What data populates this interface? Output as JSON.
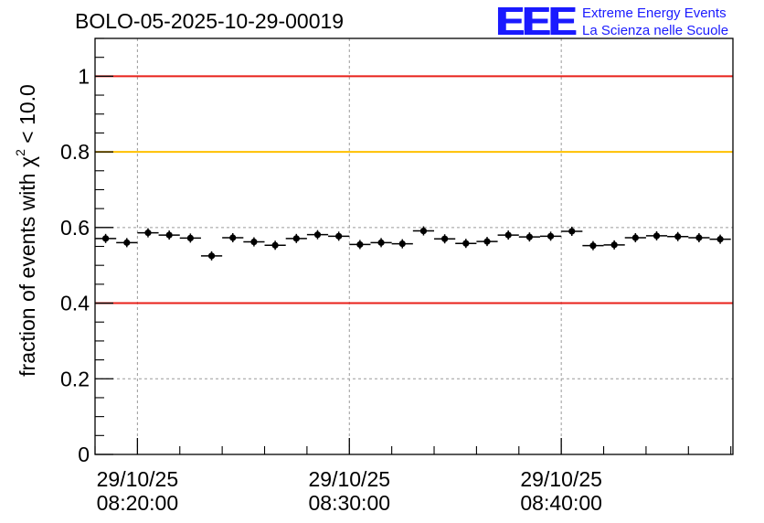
{
  "header": {
    "title": "BOLO-05-2025-10-29-00019",
    "logo_mark": "EEE",
    "logo_line1": "Extreme Energy Events",
    "logo_line2": "La Scienza nelle Scuole"
  },
  "colors": {
    "limit_red": "#e8201a",
    "limit_yellow": "#ffc000",
    "grid": "#9a9a9a",
    "points": "#000000",
    "logo": "#1a1aff"
  },
  "chart_data": {
    "type": "scatter",
    "title": "BOLO-05-2025-10-29-00019",
    "xlabel": "",
    "ylabel_prefix": "fraction of events with ",
    "ylabel_symbol": "χ",
    "ylabel_sup": "2",
    "ylabel_suffix": " < 10.0",
    "ylim": [
      0,
      1.1
    ],
    "yticks": [
      0,
      0.2,
      0.4,
      0.6,
      0.8,
      1
    ],
    "ytick_labels": [
      "0",
      "0.2",
      "0.4",
      "0.6",
      "0.8",
      "1"
    ],
    "x_range_minutes": [
      8.0,
      38.1
    ],
    "bin_width_minutes": 1.0,
    "xticks": [
      {
        "minute": 10,
        "date": "29/10/25",
        "time": "08:20:00"
      },
      {
        "minute": 20,
        "date": "29/10/25",
        "time": "08:30:00"
      },
      {
        "minute": 30,
        "date": "29/10/25",
        "time": "08:40:00"
      }
    ],
    "reference_lines": [
      {
        "y": 1.0,
        "color": "#e8201a"
      },
      {
        "y": 0.8,
        "color": "#ffc000"
      },
      {
        "y": 0.4,
        "color": "#e8201a"
      }
    ],
    "series": [
      {
        "name": "fraction",
        "x": [
          8.5,
          9.5,
          10.5,
          11.5,
          12.5,
          13.5,
          14.5,
          15.5,
          16.5,
          17.5,
          18.5,
          19.5,
          20.5,
          21.5,
          22.5,
          23.5,
          24.5,
          25.5,
          26.5,
          27.5,
          28.5,
          29.5,
          30.5,
          31.5,
          32.5,
          33.5,
          34.5,
          35.5,
          36.5,
          37.5
        ],
        "y": [
          0.571,
          0.56,
          0.586,
          0.58,
          0.572,
          0.525,
          0.573,
          0.562,
          0.553,
          0.571,
          0.581,
          0.577,
          0.555,
          0.56,
          0.557,
          0.591,
          0.57,
          0.558,
          0.563,
          0.58,
          0.575,
          0.577,
          0.59,
          0.552,
          0.554,
          0.573,
          0.578,
          0.576,
          0.573,
          0.569
        ]
      }
    ]
  }
}
